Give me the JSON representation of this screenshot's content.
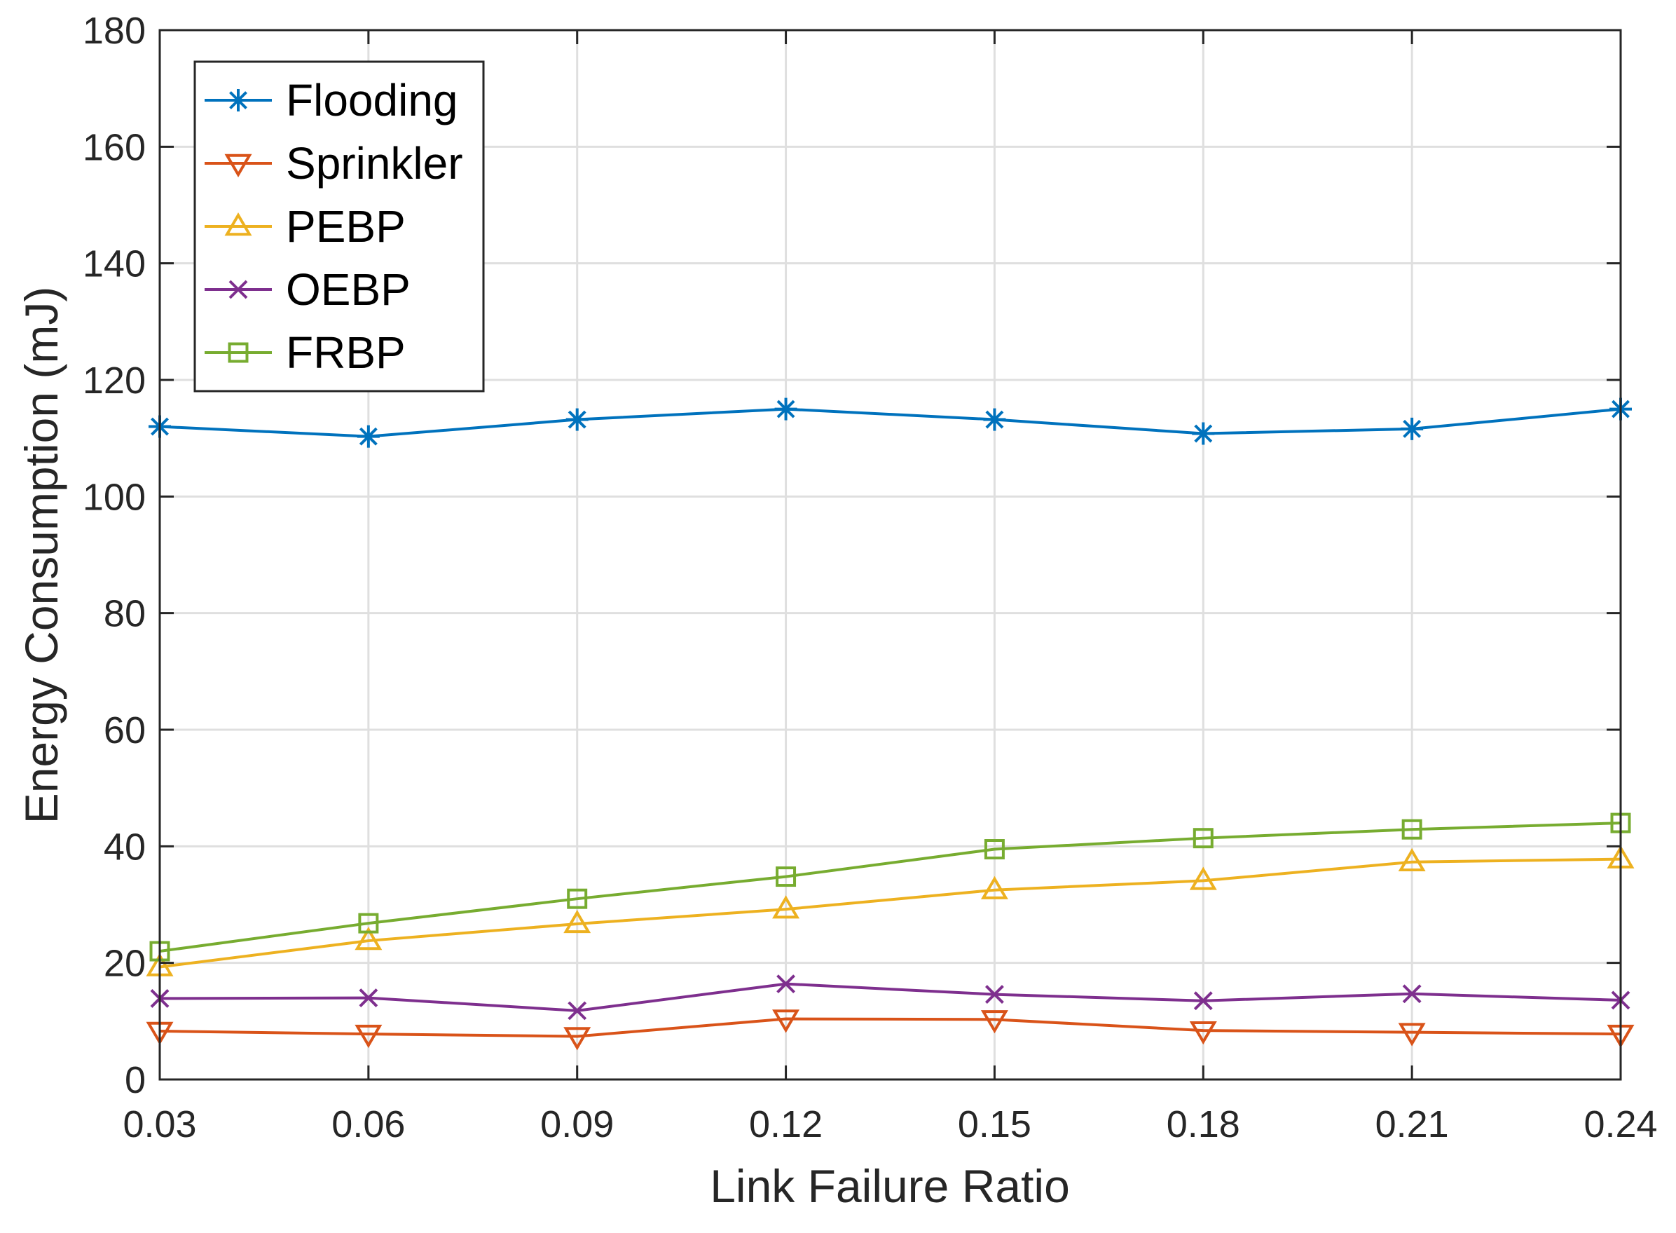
{
  "chart_data": {
    "type": "line",
    "title": "",
    "xlabel": "Link Failure Ratio",
    "ylabel": "Energy Consumption (mJ)",
    "x": [
      0.03,
      0.06,
      0.09,
      0.12,
      0.15,
      0.18,
      0.21,
      0.24
    ],
    "xticks": [
      "0.03",
      "0.06",
      "0.09",
      "0.12",
      "0.15",
      "0.18",
      "0.21",
      "0.24"
    ],
    "xlim": [
      0.03,
      0.24
    ],
    "ylim": [
      0,
      180
    ],
    "yticks": [
      "0",
      "20",
      "40",
      "60",
      "80",
      "100",
      "120",
      "140",
      "160",
      "180"
    ],
    "grid": true,
    "legend_position": "top-left",
    "series": [
      {
        "name": "Flooding",
        "color": "#0072BD",
        "marker": "asterisk",
        "values": [
          112.0,
          110.3,
          113.2,
          115.0,
          113.2,
          110.8,
          111.6,
          115.0
        ]
      },
      {
        "name": "Sprinkler",
        "color": "#D95319",
        "marker": "triangle-down",
        "values": [
          8.3,
          7.8,
          7.4,
          10.4,
          10.3,
          8.4,
          8.1,
          7.8
        ]
      },
      {
        "name": "PEBP",
        "color": "#EDB120",
        "marker": "triangle-up",
        "values": [
          19.3,
          23.8,
          26.7,
          29.2,
          32.5,
          34.1,
          37.3,
          37.8
        ]
      },
      {
        "name": "OEBP",
        "color": "#7E2F8E",
        "marker": "x",
        "values": [
          13.9,
          14.0,
          11.8,
          16.4,
          14.6,
          13.5,
          14.7,
          13.6
        ]
      },
      {
        "name": "FRBP",
        "color": "#77AC30",
        "marker": "square",
        "values": [
          22.0,
          26.8,
          31.0,
          34.8,
          39.5,
          41.4,
          42.9,
          44.0
        ]
      }
    ]
  }
}
